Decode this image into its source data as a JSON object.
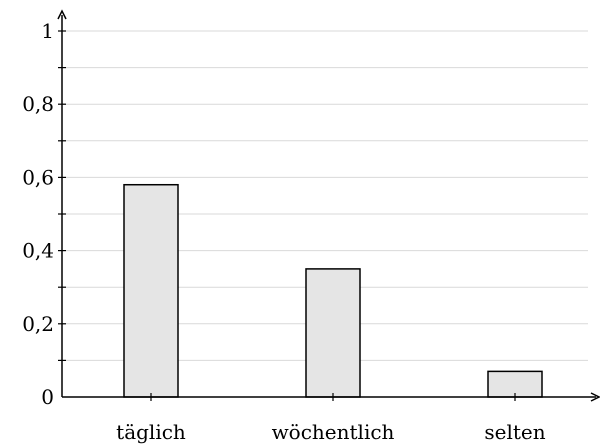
{
  "chart_data": {
    "type": "bar",
    "title": "",
    "xlabel": "",
    "ylabel": "",
    "categories": [
      "täglich",
      "wöchentlich",
      "selten"
    ],
    "values": [
      0.58,
      0.35,
      0.07
    ],
    "ylim": [
      0,
      1
    ],
    "y_ticks": [
      {
        "value": 0,
        "label": "0"
      },
      {
        "value": 0.2,
        "label": "0,2"
      },
      {
        "value": 0.4,
        "label": "0,4"
      },
      {
        "value": 0.6,
        "label": "0,6"
      },
      {
        "value": 0.8,
        "label": "0,8"
      },
      {
        "value": 1,
        "label": "1"
      }
    ],
    "minor_step": 0.1,
    "grid": true,
    "bar_color": "#e5e5e5",
    "edge_color": "#000000",
    "grid_color": "#d9d9d9"
  }
}
